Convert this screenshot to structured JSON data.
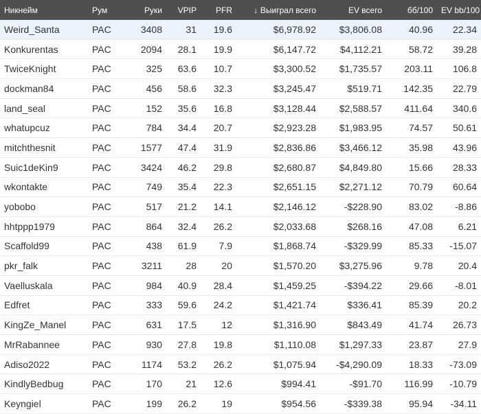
{
  "columns": [
    "Никнейм",
    "Рум",
    "Руки",
    "VPIP",
    "PFR",
    "Выиграл всего",
    "EV всего",
    "бб/100",
    "EV bb/100"
  ],
  "sort_indicator": "↓",
  "colors": {
    "header_bg": "#4f4f4f",
    "positive": "#4caf2a",
    "negative": "#e5452b",
    "selected_row": "#eaf3fc"
  },
  "selected_row_index": 0,
  "rows": [
    {
      "nick": "Weird_Santa",
      "room": "PAC",
      "hands": "3408",
      "vpip": "31",
      "pfr": "19.6",
      "won": "$6,978.92",
      "ev": "$3,806.08",
      "bb100": "40.96",
      "evbb100": "22.34"
    },
    {
      "nick": "Konkurentas",
      "room": "PAC",
      "hands": "2094",
      "vpip": "28.1",
      "pfr": "19.9",
      "won": "$6,147.72",
      "ev": "$4,112.21",
      "bb100": "58.72",
      "evbb100": "39.28"
    },
    {
      "nick": "TwiceKnight",
      "room": "PAC",
      "hands": "325",
      "vpip": "63.6",
      "pfr": "10.7",
      "won": "$3,300.52",
      "ev": "$1,735.57",
      "bb100": "203.11",
      "evbb100": "106.8"
    },
    {
      "nick": "dockman84",
      "room": "PAC",
      "hands": "456",
      "vpip": "58.6",
      "pfr": "32.3",
      "won": "$3,245.47",
      "ev": "$519.71",
      "bb100": "142.35",
      "evbb100": "22.79"
    },
    {
      "nick": "land_seal",
      "room": "PAC",
      "hands": "152",
      "vpip": "35.6",
      "pfr": "16.8",
      "won": "$3,128.44",
      "ev": "$2,588.57",
      "bb100": "411.64",
      "evbb100": "340.6"
    },
    {
      "nick": "whatupcuz",
      "room": "PAC",
      "hands": "784",
      "vpip": "34.4",
      "pfr": "20.7",
      "won": "$2,923.28",
      "ev": "$1,983.95",
      "bb100": "74.57",
      "evbb100": "50.61"
    },
    {
      "nick": "mitchthesnit",
      "room": "PAC",
      "hands": "1577",
      "vpip": "47.4",
      "pfr": "31.9",
      "won": "$2,836.86",
      "ev": "$3,466.12",
      "bb100": "35.98",
      "evbb100": "43.96"
    },
    {
      "nick": "Suic1deKin9",
      "room": "PAC",
      "hands": "3424",
      "vpip": "46.2",
      "pfr": "29.8",
      "won": "$2,680.87",
      "ev": "$4,849.80",
      "bb100": "15.66",
      "evbb100": "28.33"
    },
    {
      "nick": "wkontakte",
      "room": "PAC",
      "hands": "749",
      "vpip": "35.4",
      "pfr": "22.3",
      "won": "$2,651.15",
      "ev": "$2,271.12",
      "bb100": "70.79",
      "evbb100": "60.64"
    },
    {
      "nick": "yobobo",
      "room": "PAC",
      "hands": "517",
      "vpip": "21.2",
      "pfr": "14.1",
      "won": "$2,146.12",
      "ev": "-$228.90",
      "bb100": "83.02",
      "evbb100": "-8.86"
    },
    {
      "nick": "hhtppp1979",
      "room": "PAC",
      "hands": "864",
      "vpip": "32.4",
      "pfr": "26.2",
      "won": "$2,033.68",
      "ev": "$268.16",
      "bb100": "47.08",
      "evbb100": "6.21"
    },
    {
      "nick": "Scaffold99",
      "room": "PAC",
      "hands": "438",
      "vpip": "61.9",
      "pfr": "7.9",
      "won": "$1,868.74",
      "ev": "-$329.99",
      "bb100": "85.33",
      "evbb100": "-15.07"
    },
    {
      "nick": "pkr_falk",
      "room": "PAC",
      "hands": "3211",
      "vpip": "28",
      "pfr": "20",
      "won": "$1,570.20",
      "ev": "$3,275.96",
      "bb100": "9.78",
      "evbb100": "20.4"
    },
    {
      "nick": "Vaelluskala",
      "room": "PAC",
      "hands": "984",
      "vpip": "40.9",
      "pfr": "28.4",
      "won": "$1,459.25",
      "ev": "-$394.22",
      "bb100": "29.66",
      "evbb100": "-8.01"
    },
    {
      "nick": "Edfret",
      "room": "PAC",
      "hands": "333",
      "vpip": "59.6",
      "pfr": "24.2",
      "won": "$1,421.74",
      "ev": "$336.41",
      "bb100": "85.39",
      "evbb100": "20.2"
    },
    {
      "nick": "KingZe_Manel",
      "room": "PAC",
      "hands": "631",
      "vpip": "17.5",
      "pfr": "12",
      "won": "$1,316.90",
      "ev": "$843.49",
      "bb100": "41.74",
      "evbb100": "26.73"
    },
    {
      "nick": "MrRabannee",
      "room": "PAC",
      "hands": "930",
      "vpip": "27.8",
      "pfr": "19.8",
      "won": "$1,110.08",
      "ev": "$1,297.33",
      "bb100": "23.87",
      "evbb100": "27.9"
    },
    {
      "nick": "Adiso2022",
      "room": "PAC",
      "hands": "1174",
      "vpip": "53.2",
      "pfr": "26.2",
      "won": "$1,075.94",
      "ev": "-$4,290.09",
      "bb100": "18.33",
      "evbb100": "-73.09"
    },
    {
      "nick": "KindlyBedbug",
      "room": "PAC",
      "hands": "170",
      "vpip": "21",
      "pfr": "12.6",
      "won": "$994.41",
      "ev": "-$91.70",
      "bb100": "116.99",
      "evbb100": "-10.79"
    },
    {
      "nick": "Keyngiel",
      "room": "PAC",
      "hands": "199",
      "vpip": "26.2",
      "pfr": "19",
      "won": "$954.56",
      "ev": "-$339.38",
      "bb100": "95.94",
      "evbb100": "-34.11"
    }
  ]
}
